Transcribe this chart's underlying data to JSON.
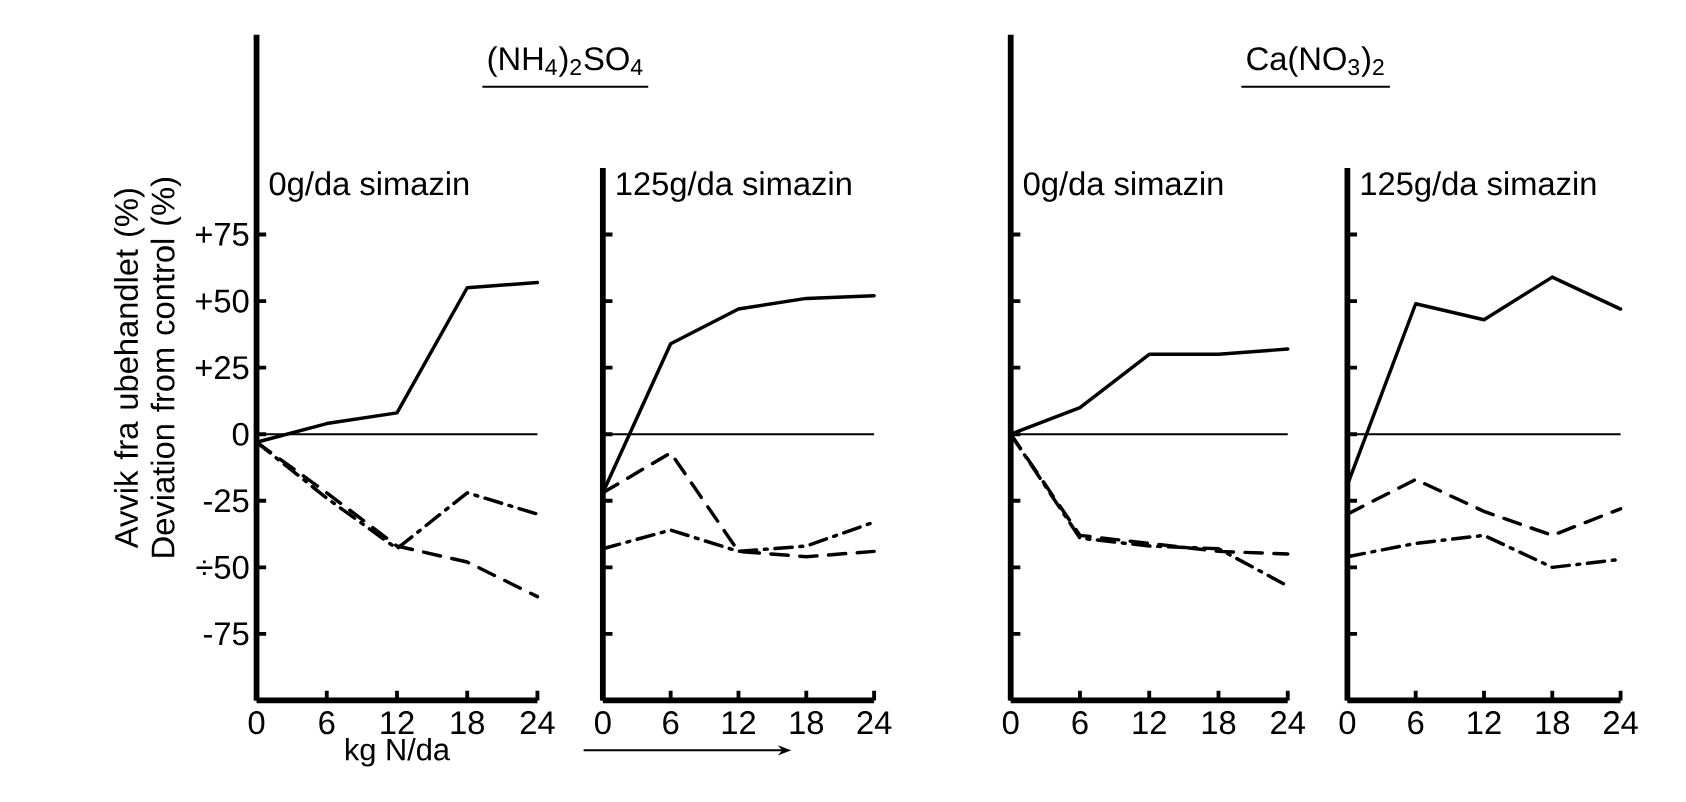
{
  "chart_data": [
    {
      "type": "line",
      "title": "(NH$_{4}$)$_{2}$SO$_{4}$",
      "subtitle": "0g/da simazin",
      "ylabel": "Avvik fra ubehandlet (%) Deviation from control (%)",
      "xlabel": "kg N/da",
      "x": [
        0,
        6,
        12,
        18,
        24
      ],
      "xlim": [
        0,
        24
      ],
      "xticks": [
        0,
        6,
        12,
        18,
        24
      ],
      "ylim": [
        -100,
        150
      ],
      "yticks": [
        {
          "value": 75,
          "label": "+75"
        },
        {
          "value": 50,
          "label": "+50"
        },
        {
          "value": 25,
          "label": "+25"
        },
        0,
        -25,
        {
          "value": -50,
          "label": "÷50"
        },
        -75
      ],
      "series": [
        {
          "color": "#000000",
          "line_style": "solid",
          "values": [
            -3,
            4,
            8,
            55,
            57
          ]
        },
        {
          "color": "#000000",
          "line_style": "dashed",
          "values": [
            -3,
            -22,
            -42,
            -48,
            -61
          ]
        },
        {
          "color": "#000000",
          "line_style": "dashdot",
          "values": [
            -3,
            -24,
            -43,
            -22,
            -30
          ]
        }
      ],
      "ref_lines": [
        {
          "axis": "y",
          "value": 0
        }
      ]
    },
    {
      "type": "line",
      "subtitle": "125g/da simazin",
      "x": [
        0,
        6,
        12,
        18,
        24
      ],
      "xlim": [
        0,
        24
      ],
      "xticks": [
        0,
        6,
        12,
        18,
        24
      ],
      "ylim": [
        -100,
        100
      ],
      "yticks": [
        75,
        50,
        25,
        0,
        -25,
        -50,
        -75
      ],
      "tick_labels": "x",
      "series": [
        {
          "color": "#000000",
          "line_style": "solid",
          "values": [
            -22,
            34,
            47,
            51,
            52
          ]
        },
        {
          "color": "#000000",
          "line_style": "dashed",
          "values": [
            -22,
            -7,
            -44,
            -46,
            -44
          ]
        },
        {
          "color": "#000000",
          "line_style": "dashdot",
          "values": [
            -43,
            -36,
            -44,
            -42,
            -33
          ]
        }
      ],
      "ref_lines": [
        {
          "axis": "y",
          "value": 0
        }
      ]
    },
    {
      "type": "line",
      "title": "Ca(NO$_{3}$)$_{2}$",
      "subtitle": "0g/da simazin",
      "x": [
        0,
        6,
        12,
        18,
        24
      ],
      "xlim": [
        0,
        24
      ],
      "xticks": [
        0,
        6,
        12,
        18,
        24
      ],
      "ylim": [
        -100,
        150
      ],
      "yticks": [
        75,
        50,
        25,
        0,
        -25,
        -50,
        -75
      ],
      "tick_labels": "x",
      "series": [
        {
          "color": "#000000",
          "line_style": "solid",
          "values": [
            0,
            10,
            30,
            30,
            32
          ]
        },
        {
          "color": "#000000",
          "line_style": "dashed",
          "values": [
            0,
            -38,
            -41,
            -44,
            -45
          ]
        },
        {
          "color": "#000000",
          "line_style": "dashdot",
          "values": [
            0,
            -39,
            -42,
            -43,
            -57
          ]
        }
      ],
      "ref_lines": [
        {
          "axis": "y",
          "value": 0
        }
      ]
    },
    {
      "type": "line",
      "subtitle": "125g/da simazin",
      "x": [
        0,
        6,
        12,
        18,
        24
      ],
      "xlim": [
        0,
        24
      ],
      "xticks": [
        0,
        6,
        12,
        18,
        24
      ],
      "ylim": [
        -100,
        100
      ],
      "yticks": [
        75,
        50,
        25,
        0,
        -25,
        -50,
        -75
      ],
      "tick_labels": "x",
      "series": [
        {
          "color": "#000000",
          "line_style": "solid",
          "values": [
            -19,
            49,
            43,
            59,
            47
          ]
        },
        {
          "color": "#000000",
          "line_style": "dashed",
          "values": [
            -30,
            -17,
            -29,
            -38,
            -28
          ]
        },
        {
          "color": "#000000",
          "line_style": "dashdot",
          "values": [
            -46,
            -41,
            -38,
            -50,
            -47
          ]
        }
      ],
      "ref_lines": [
        {
          "axis": "y",
          "value": 0
        }
      ]
    }
  ]
}
